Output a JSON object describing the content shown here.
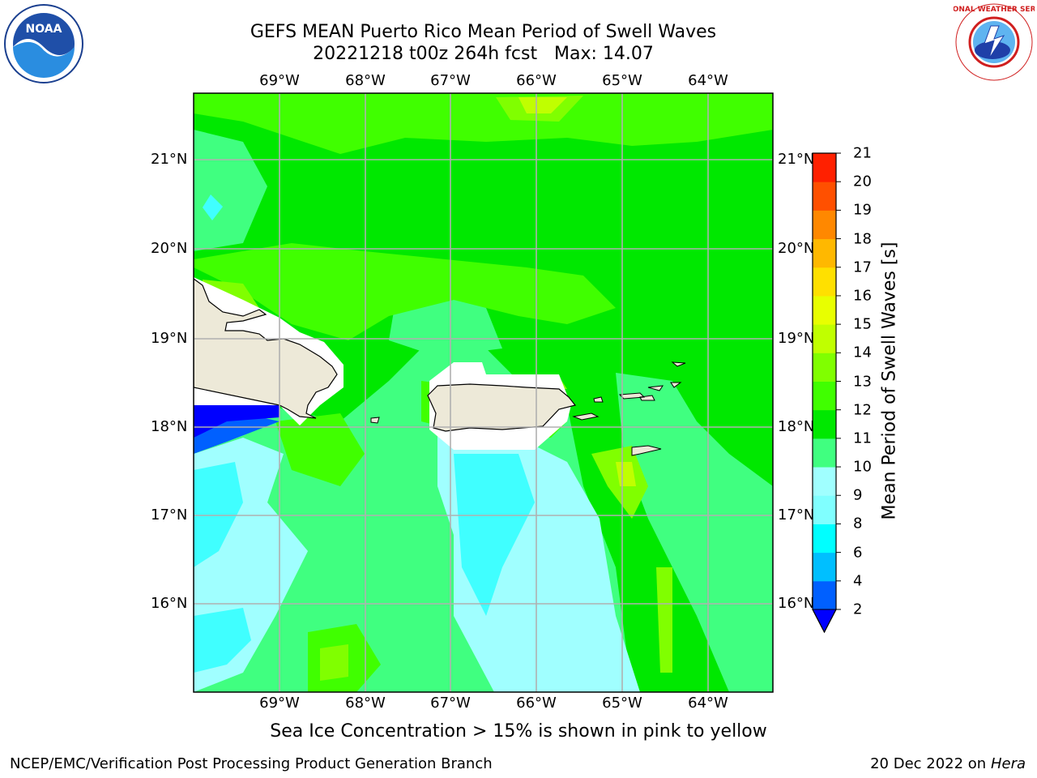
{
  "header": {
    "title_line1": "GEFS MEAN Puerto Rico Mean Period of Swell Waves",
    "title_line2": "20221218 t00z 264h fcst   Max: 14.07"
  },
  "logos": {
    "noaa_text": "NOAA",
    "nws_text": "NATIONAL WEATHER SERVICE"
  },
  "map": {
    "lon_labels": [
      "69°W",
      "68°W",
      "67°W",
      "66°W",
      "65°W",
      "64°W"
    ],
    "lat_labels": [
      "21°N",
      "20°N",
      "19°N",
      "18°N",
      "17°N",
      "16°N"
    ],
    "colors": {
      "land": "#ede9d8",
      "coast": "#000000",
      "grid": "#b0b0b0"
    }
  },
  "colorbar": {
    "title": "Mean Period of Swell Waves [s]",
    "levels": [
      2,
      4,
      6,
      8,
      9,
      10,
      11,
      12,
      13,
      14,
      15,
      16,
      17,
      18,
      19,
      20,
      21
    ],
    "labels": [
      "2",
      "4",
      "6",
      "8",
      "9",
      "10",
      "11",
      "12",
      "13",
      "14",
      "15",
      "16",
      "17",
      "18",
      "19",
      "20",
      "21"
    ],
    "colors": [
      "#0060ff",
      "#00bfff",
      "#00ffff",
      "#80ffff",
      "#a0ffff",
      "#40ff80",
      "#00e800",
      "#40ff00",
      "#80ff00",
      "#c0ff00",
      "#e8ff00",
      "#ffe000",
      "#ffb800",
      "#ff8800",
      "#ff5000",
      "#ff2000"
    ],
    "extend_color": "#0000ff"
  },
  "footer": {
    "note": "Sea Ice Concentration > 15% is shown in pink to yellow",
    "left": "NCEP/EMC/Verification Post Processing Product Generation Branch",
    "right_date": "20 Dec 2022 on",
    "right_machine": "Hera"
  }
}
